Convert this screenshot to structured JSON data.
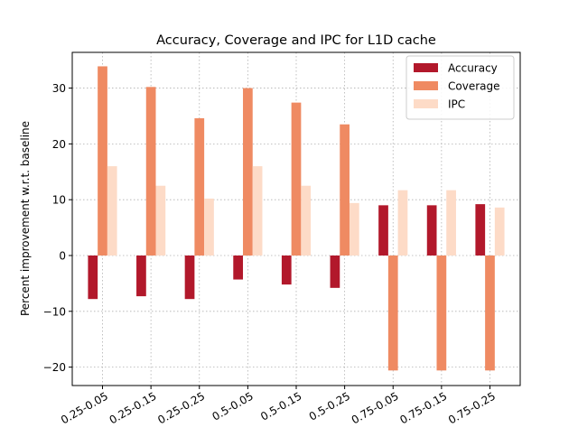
{
  "chart_data": {
    "type": "bar",
    "title": "Accuracy, Coverage and IPC for L1D cache",
    "xlabel": "",
    "ylabel": "Percent improvement w.r.t. baseline",
    "categories": [
      "0.25-0.05",
      "0.25-0.15",
      "0.25-0.25",
      "0.5-0.05",
      "0.5-0.15",
      "0.5-0.25",
      "0.75-0.05",
      "0.75-0.15",
      "0.75-0.25"
    ],
    "series": [
      {
        "name": "Accuracy",
        "color": "#b2182b",
        "values": [
          -7.8,
          -7.3,
          -7.8,
          -4.3,
          -5.2,
          -5.8,
          9.0,
          9.0,
          9.2
        ]
      },
      {
        "name": "Coverage",
        "color": "#ef8a62",
        "values": [
          33.9,
          30.2,
          24.6,
          30.0,
          27.4,
          23.5,
          -20.6,
          -20.6,
          -20.6
        ]
      },
      {
        "name": "IPC",
        "color": "#fddbc7",
        "values": [
          16.0,
          12.5,
          10.2,
          16.0,
          12.5,
          9.4,
          11.7,
          11.7,
          8.6
        ]
      }
    ],
    "ylim": [
      -23.3,
      36.4
    ],
    "yticks": [
      -20,
      -10,
      0,
      10,
      20,
      30
    ],
    "ytick_labels": [
      "−20",
      "−10",
      "0",
      "10",
      "20",
      "30"
    ],
    "grid": true,
    "legend": "top-right"
  }
}
